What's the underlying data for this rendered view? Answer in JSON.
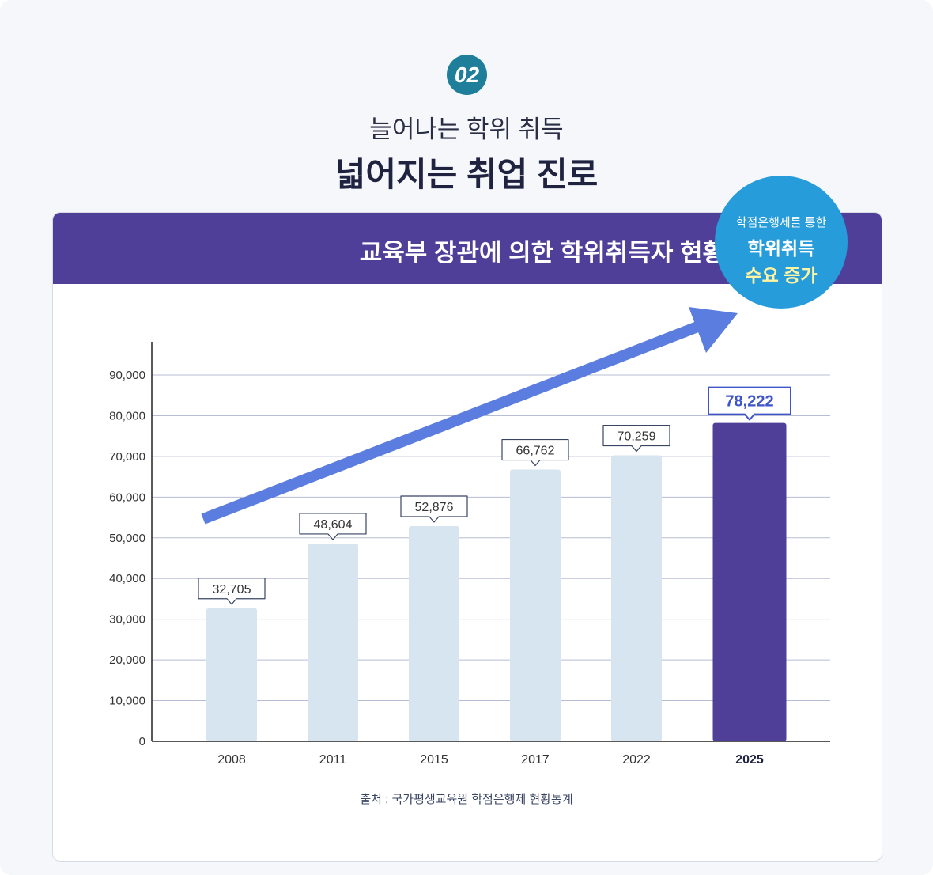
{
  "header": {
    "number": "02",
    "subtitle": "늘어나는 학위 취득",
    "title": "넓어지는 취업 진로"
  },
  "badge": {
    "line1": "학점은행제를 통한",
    "line2": "학위취득",
    "line3": "수요 증가"
  },
  "source": "출처 : 국가평생교육원 학점은행제 현황통계",
  "colors": {
    "bar": "#d6e5ef",
    "highlight": "#4f3f98",
    "arrow": "#5b7de0",
    "band": "#4f3f98",
    "badge": "#279cdb"
  },
  "chart_data": {
    "type": "bar",
    "title": "교육부 장관에 의한 학위취득자 현황",
    "categories": [
      "2008",
      "2011",
      "2015",
      "2017",
      "2022",
      "2025"
    ],
    "values": [
      32705,
      48604,
      52876,
      66762,
      70259,
      78222
    ],
    "labels": [
      "32,705",
      "48,604",
      "52,876",
      "66,762",
      "70,259",
      "78,222"
    ],
    "highlight_index": 5,
    "ylim": [
      0,
      90000
    ],
    "yticks": [
      0,
      10000,
      20000,
      30000,
      40000,
      50000,
      60000,
      70000,
      80000,
      90000
    ],
    "ytick_labels": [
      "0",
      "10,000",
      "20,000",
      "30,000",
      "40,000",
      "50,000",
      "60,000",
      "70,000",
      "80,000",
      "90,000"
    ],
    "grid": true,
    "trend_arrow": true
  }
}
